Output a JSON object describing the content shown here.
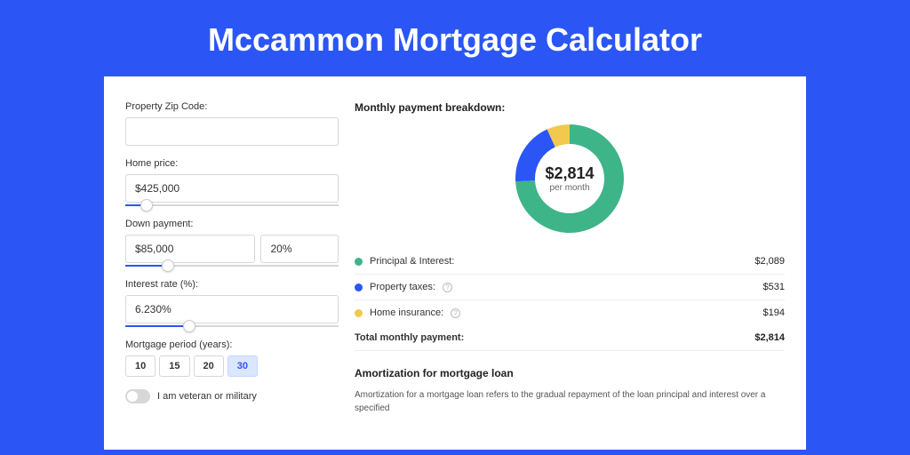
{
  "page": {
    "title": "Mccammon Mortgage Calculator",
    "background_color": "#2b56f5",
    "card_background": "#ffffff"
  },
  "form": {
    "zip": {
      "label": "Property Zip Code:",
      "value": ""
    },
    "price": {
      "label": "Home price:",
      "value": "$425,000",
      "slider_pct": 10
    },
    "down": {
      "label": "Down payment:",
      "value": "$85,000",
      "pct": "20%",
      "slider_pct": 20
    },
    "rate": {
      "label": "Interest rate (%):",
      "value": "6.230%",
      "slider_pct": 30
    },
    "period": {
      "label": "Mortgage period (years):",
      "options": [
        "10",
        "15",
        "20",
        "30"
      ],
      "selected": "30"
    },
    "veteran": {
      "label": "I am veteran or military",
      "checked": false
    }
  },
  "breakdown": {
    "title": "Monthly payment breakdown:",
    "center_amount": "$2,814",
    "center_sub": "per month",
    "items": [
      {
        "label": "Principal & Interest:",
        "value": "$2,089",
        "color": "#3eb489",
        "has_info": false,
        "pct": 74
      },
      {
        "label": "Property taxes:",
        "value": "$531",
        "color": "#2b56f5",
        "has_info": true,
        "pct": 19
      },
      {
        "label": "Home insurance:",
        "value": "$194",
        "color": "#f2c94c",
        "has_info": true,
        "pct": 7
      }
    ],
    "total_label": "Total monthly payment:",
    "total_value": "$2,814"
  },
  "amortization": {
    "title": "Amortization for mortgage loan",
    "text": "Amortization for a mortgage loan refers to the gradual repayment of the loan principal and interest over a specified"
  },
  "donut": {
    "radius": 50,
    "stroke_width": 22,
    "circumference": 314.16
  }
}
